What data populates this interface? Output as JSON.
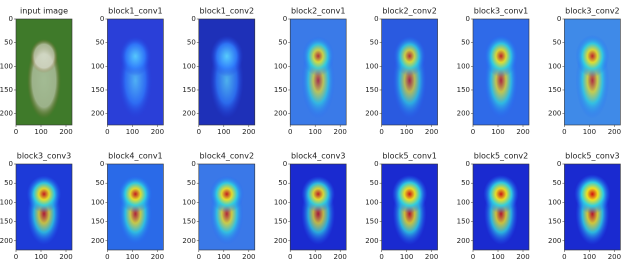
{
  "chart_data": [
    {
      "type": "image",
      "title": "input image",
      "xlim": [
        0,
        224
      ],
      "ylim": [
        224,
        0
      ],
      "xticks": [
        0,
        100,
        200
      ],
      "yticks": [
        0,
        50,
        100,
        150,
        200
      ]
    },
    {
      "type": "image",
      "title": "block1_conv1",
      "xlim": [
        0,
        224
      ],
      "ylim": [
        224,
        0
      ],
      "xticks": [
        0,
        100,
        200
      ],
      "yticks": [
        0,
        50,
        100,
        150,
        200
      ]
    },
    {
      "type": "image",
      "title": "block1_conv2",
      "xlim": [
        0,
        224
      ],
      "ylim": [
        224,
        0
      ],
      "xticks": [
        0,
        100,
        200
      ],
      "yticks": [
        0,
        50,
        100,
        150,
        200
      ]
    },
    {
      "type": "image",
      "title": "block2_conv1",
      "xlim": [
        0,
        224
      ],
      "ylim": [
        224,
        0
      ],
      "xticks": [
        0,
        100,
        200
      ],
      "yticks": [
        0,
        50,
        100,
        150,
        200
      ]
    },
    {
      "type": "image",
      "title": "block2_conv2",
      "xlim": [
        0,
        224
      ],
      "ylim": [
        224,
        0
      ],
      "xticks": [
        0,
        100,
        200
      ],
      "yticks": [
        0,
        50,
        100,
        150,
        200
      ]
    },
    {
      "type": "image",
      "title": "block3_conv1",
      "xlim": [
        0,
        224
      ],
      "ylim": [
        224,
        0
      ],
      "xticks": [
        0,
        100,
        200
      ],
      "yticks": [
        0,
        50,
        100,
        150,
        200
      ]
    },
    {
      "type": "image",
      "title": "block3_conv2",
      "xlim": [
        0,
        224
      ],
      "ylim": [
        224,
        0
      ],
      "xticks": [
        0,
        100,
        200
      ],
      "yticks": [
        0,
        50,
        100,
        150,
        200
      ]
    },
    {
      "type": "image",
      "title": "block3_conv3",
      "xlim": [
        0,
        224
      ],
      "ylim": [
        224,
        0
      ],
      "xticks": [
        0,
        100,
        200
      ],
      "yticks": [
        0,
        50,
        100,
        150,
        200
      ]
    },
    {
      "type": "image",
      "title": "block4_conv1",
      "xlim": [
        0,
        224
      ],
      "ylim": [
        224,
        0
      ],
      "xticks": [
        0,
        100,
        200
      ],
      "yticks": [
        0,
        50,
        100,
        150,
        200
      ]
    },
    {
      "type": "image",
      "title": "block4_conv2",
      "xlim": [
        0,
        224
      ],
      "ylim": [
        224,
        0
      ],
      "xticks": [
        0,
        100,
        200
      ],
      "yticks": [
        0,
        50,
        100,
        150,
        200
      ]
    },
    {
      "type": "image",
      "title": "block4_conv3",
      "xlim": [
        0,
        224
      ],
      "ylim": [
        224,
        0
      ],
      "xticks": [
        0,
        100,
        200
      ],
      "yticks": [
        0,
        50,
        100,
        150,
        200
      ]
    },
    {
      "type": "image",
      "title": "block5_conv1",
      "xlim": [
        0,
        224
      ],
      "ylim": [
        224,
        0
      ],
      "xticks": [
        0,
        100,
        200
      ],
      "yticks": [
        0,
        50,
        100,
        150,
        200
      ]
    },
    {
      "type": "image",
      "title": "block5_conv2",
      "xlim": [
        0,
        224
      ],
      "ylim": [
        224,
        0
      ],
      "xticks": [
        0,
        100,
        200
      ],
      "yticks": [
        0,
        50,
        100,
        150,
        200
      ]
    },
    {
      "type": "image",
      "title": "block5_conv3",
      "xlim": [
        0,
        224
      ],
      "ylim": [
        224,
        0
      ],
      "xticks": [
        0,
        100,
        200
      ],
      "yticks": [
        0,
        50,
        100,
        150,
        200
      ]
    }
  ]
}
